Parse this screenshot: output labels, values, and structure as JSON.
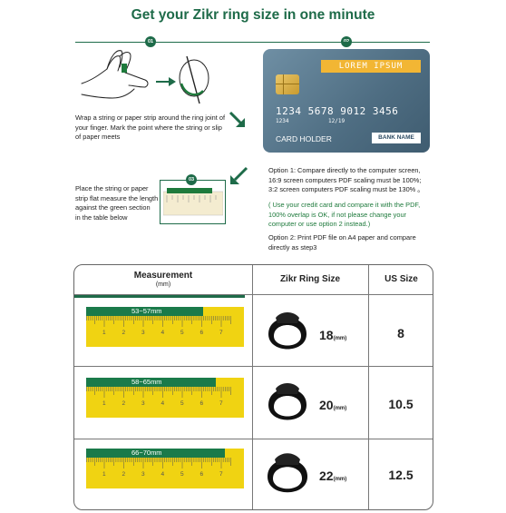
{
  "title": "Get your Zikr ring size in one minute",
  "steps": {
    "step1": {
      "badge": "01",
      "text": [
        "Wrap a string or paper strip around the ring joint of",
        "your finger. Mark the point where the string or slip",
        "of paper meets"
      ]
    },
    "step2": {
      "badge": "02",
      "card": {
        "banner": "LOREM IPSUM",
        "number": "1234 5678 9012 3456",
        "small_number": "1234",
        "expiry": "12/19",
        "holder": "CARD HOLDER",
        "bank": "BANK NAME"
      },
      "option1": [
        "Option 1: Compare directly to the computer screen,",
        "16:9 screen computers PDF scaling must be 100%;",
        "3:2 screen computers PDF scaling must be 130% 。"
      ],
      "option1_note": [
        "( Use your credit card and compare it with the PDF,",
        "100% overlap is OK, if not please change your",
        "computer or use option 2 instead.)"
      ],
      "option2": [
        "Option 2: Print PDF file on A4 paper and compare",
        "directly as step3"
      ]
    },
    "step3": {
      "badge": "03",
      "text": [
        "Place the string or paper",
        "strip flat measure the length",
        "against the green section",
        "in the table below"
      ]
    }
  },
  "table": {
    "headers": {
      "measurement": "Measurement",
      "measurement_unit": "(mm)",
      "ring": "Zikr Ring Size",
      "us": "US Size"
    },
    "ruler_numbers": [
      "1",
      "2",
      "3",
      "4",
      "5",
      "6",
      "7"
    ],
    "rows": [
      {
        "range": "53~57mm",
        "ring_size": "18",
        "unit": "(mm)",
        "us": "8",
        "band_fraction": 0.74
      },
      {
        "range": "58~65mm",
        "ring_size": "20",
        "unit": "(mm)",
        "us": "10.5",
        "band_fraction": 0.82
      },
      {
        "range": "66~70mm",
        "ring_size": "22",
        "unit": "(mm)",
        "us": "12.5",
        "band_fraction": 0.88
      }
    ]
  },
  "colors": {
    "brand_green": "#1e6b49",
    "ruler_yellow": "#f0d312",
    "card_banner": "#f2b634"
  }
}
